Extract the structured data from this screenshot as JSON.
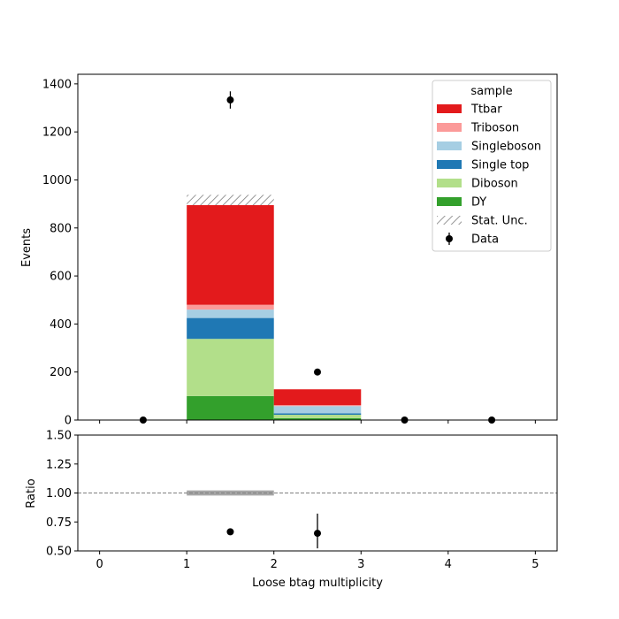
{
  "chart_data": [
    {
      "type": "bar",
      "stacked": true,
      "bins": [
        [
          0,
          1
        ],
        [
          1,
          2
        ],
        [
          2,
          3
        ],
        [
          3,
          4
        ],
        [
          4,
          5
        ]
      ],
      "ylabel": "Events",
      "xlim": [
        -0.25,
        5.25
      ],
      "ylim": [
        0,
        1440
      ],
      "yticks": [
        "0",
        "200",
        "400",
        "600",
        "800",
        "1000",
        "1200",
        "1400"
      ],
      "series": [
        {
          "name": "DY",
          "color": "#33a02c",
          "values": [
            0,
            100,
            8,
            0,
            0
          ]
        },
        {
          "name": "Diboson",
          "color": "#b2df8a",
          "values": [
            0,
            238,
            14,
            0,
            0
          ]
        },
        {
          "name": "Single top",
          "color": "#1f78b4",
          "values": [
            0,
            87,
            6,
            0,
            0
          ]
        },
        {
          "name": "Singleboson",
          "color": "#a6cee3",
          "values": [
            0,
            35,
            30,
            0,
            0
          ]
        },
        {
          "name": "Triboson",
          "color": "#fb9a99",
          "values": [
            0,
            20,
            4,
            0,
            0
          ]
        },
        {
          "name": "Ttbar",
          "color": "#e31a1c",
          "values": [
            0,
            415,
            66,
            0,
            0
          ]
        }
      ],
      "stat_unc": {
        "name": "Stat. Unc.",
        "bins": [
          1
        ],
        "up": 938,
        "down": 895
      },
      "data": {
        "name": "Data",
        "x": [
          0.5,
          1.5,
          2.5,
          3.5,
          4.5
        ],
        "y": [
          0,
          1333,
          200,
          0,
          0
        ],
        "err": [
          0,
          36,
          14,
          0,
          0
        ]
      },
      "legend": {
        "title": "sample",
        "placement": "top-right",
        "order": [
          "Ttbar",
          "Triboson",
          "Singleboson",
          "Single top",
          "Diboson",
          "DY",
          "Stat. Unc.",
          "Data"
        ]
      }
    },
    {
      "type": "scatter",
      "xlabel": "Loose btag multiplicity",
      "ylabel": "Ratio",
      "xlim": [
        -0.25,
        5.25
      ],
      "ylim": [
        0.5,
        1.5
      ],
      "xticks": [
        "0",
        "1",
        "2",
        "3",
        "4",
        "5"
      ],
      "yticks": [
        "0.50",
        "0.75",
        "1.00",
        "1.25",
        "1.50"
      ],
      "reference_line": 1.0,
      "unc_band": {
        "bin": [
          1,
          2
        ],
        "low": 0.978,
        "high": 1.022
      },
      "points": [
        {
          "x": 1.5,
          "y": 0.665,
          "err_low": 0.0,
          "err_high": 0.0
        },
        {
          "x": 2.5,
          "y": 0.652,
          "err_low": 0.13,
          "err_high": 0.17
        }
      ]
    }
  ]
}
